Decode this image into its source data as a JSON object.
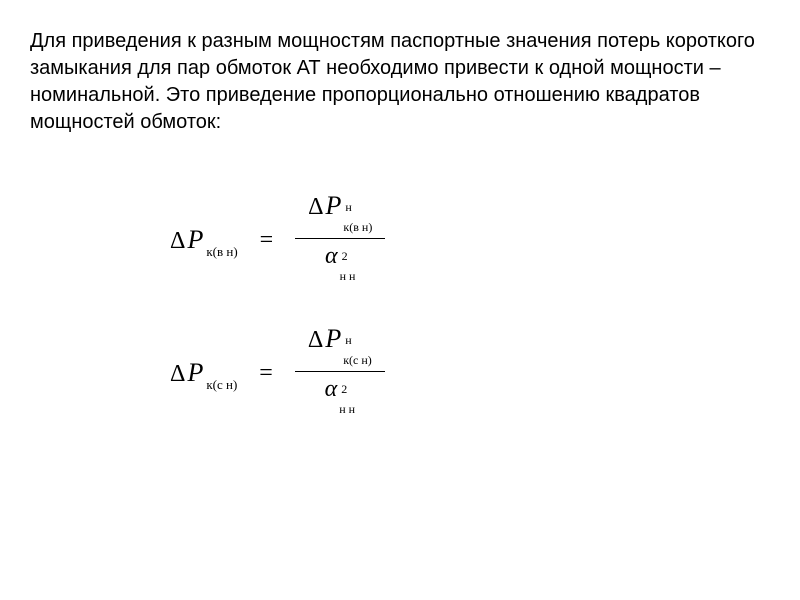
{
  "paragraph": {
    "text": "Для приведения к разным мощностям паспортные значения потерь короткого замыкания для пар обмоток АТ необходимо привести к одной мощности – номинальной. Это приведение пропорционально отношению квадратов мощностей обмоток:",
    "font_size": 20,
    "color": "#000000"
  },
  "equations": [
    {
      "lhs": {
        "delta": "Δ",
        "variable": "P",
        "subscript": "к(в н)"
      },
      "rhs": {
        "numerator": {
          "delta": "Δ",
          "variable": "P",
          "superscript": "н",
          "subscript": "к(в н)"
        },
        "denominator": {
          "variable": "α",
          "superscript": "2",
          "subscript": "н н"
        }
      }
    },
    {
      "lhs": {
        "delta": "Δ",
        "variable": "P",
        "subscript": "к(с н)"
      },
      "rhs": {
        "numerator": {
          "delta": "Δ",
          "variable": "P",
          "superscript": "н",
          "subscript": "к(с н)"
        },
        "denominator": {
          "variable": "α",
          "superscript": "2",
          "subscript": "н н"
        }
      }
    }
  ],
  "style": {
    "background": "#ffffff",
    "text_color": "#000000",
    "equation_font": "Times New Roman",
    "body_font": "Arial"
  }
}
